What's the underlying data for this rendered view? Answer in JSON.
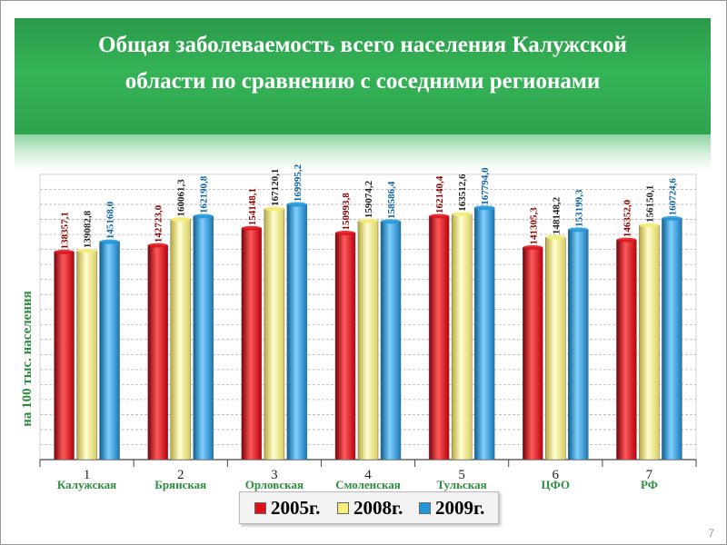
{
  "slide": {
    "title_line1": "Общая заболеваемость всего населения Калужской",
    "title_line2": "области по сравнению с соседними регионами",
    "page_number": "7"
  },
  "colors": {
    "banner": "#2ea44f",
    "series_2005": "#e0101a",
    "series_2008": "#f7ef7a",
    "series_2009": "#1f97d8",
    "category_label": "#2e8b3e",
    "ylabel": "#2e8b3e"
  },
  "chart_data": {
    "type": "bar",
    "ylabel": "на 100 тыс. населения",
    "ylim": [
      0,
      190000
    ],
    "grid": true,
    "legend_position": "bottom",
    "categories": [
      "Калужская",
      "Брянская",
      "Орловская",
      "Смоленская",
      "Тульская",
      "ЦФО",
      "РФ"
    ],
    "category_numbers": [
      "1",
      "2",
      "3",
      "4",
      "5",
      "6",
      "7"
    ],
    "series": [
      {
        "name": "2005г.",
        "values": [
          138357.1,
          142723.0,
          154148.1,
          150993.8,
          162140.4,
          141305.3,
          146352.0
        ],
        "labels": [
          "138357,1",
          "142723,0",
          "154148,1",
          "150993,8",
          "162140,4",
          "141305,3",
          "146352,0"
        ]
      },
      {
        "name": "2008г.",
        "values": [
          139082.8,
          160061.3,
          167120.1,
          159074.2,
          163512.6,
          148148.2,
          156150.1
        ],
        "labels": [
          "139082,8",
          "160061,3",
          "167120,1",
          "159074,2",
          "163512,6",
          "148148,2",
          "156150,1"
        ]
      },
      {
        "name": "2009г.",
        "values": [
          145168.0,
          162190.8,
          169995.2,
          158586.4,
          167794.0,
          153199.3,
          160724.6
        ],
        "labels": [
          "145168,0",
          "162190,8",
          "169995,2",
          "158586,4",
          "167794,0",
          "153199,3",
          "160724,6"
        ]
      }
    ]
  }
}
